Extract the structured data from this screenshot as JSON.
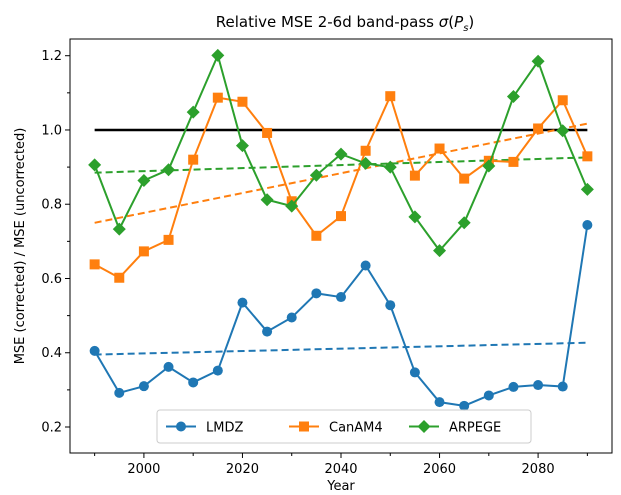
{
  "chart_data": {
    "type": "line",
    "title": "Relative MSE 2-6d band-pass σ(P_s)",
    "title_prefix": "Relative MSE 2-6d band-pass ",
    "title_sigma": "σ",
    "title_P": "P",
    "title_sub": "s",
    "xlabel": "Year",
    "ylabel": "MSE (corrected) / MSE (uncorrected)",
    "xlim": [
      1985,
      2095
    ],
    "ylim": [
      0.13,
      1.245
    ],
    "xticks": [
      2000,
      2020,
      2040,
      2060,
      2080
    ],
    "yticks": [
      0.2,
      0.4,
      0.6,
      0.8,
      1.0,
      1.2
    ],
    "xtick_labels": [
      "2000",
      "2020",
      "2040",
      "2060",
      "2080"
    ],
    "ytick_labels": [
      "0.2",
      "0.4",
      "0.6",
      "0.8",
      "1.0",
      "1.2"
    ],
    "grid": false,
    "legend_position": "bottom-center",
    "x": [
      1990,
      1995,
      2000,
      2005,
      2010,
      2015,
      2020,
      2025,
      2030,
      2035,
      2040,
      2045,
      2050,
      2055,
      2060,
      2065,
      2070,
      2075,
      2080,
      2085,
      2090
    ],
    "reference_line": {
      "y": 1.0,
      "x_start": 1990,
      "x_end": 2090,
      "color": "#000000"
    },
    "series": [
      {
        "name": "LMDZ",
        "color": "#1f77b4",
        "marker": "circle",
        "values": [
          0.405,
          0.292,
          0.31,
          0.362,
          0.32,
          0.352,
          0.535,
          0.457,
          0.495,
          0.56,
          0.55,
          0.635,
          0.528,
          0.347,
          0.267,
          0.257,
          0.285,
          0.308,
          0.313,
          0.309,
          0.744
        ],
        "trend": [
          0.395,
          0.427
        ]
      },
      {
        "name": "CanAM4",
        "color": "#ff7f0e",
        "marker": "square",
        "values": [
          0.638,
          0.602,
          0.673,
          0.704,
          0.92,
          1.087,
          1.076,
          0.992,
          0.808,
          0.715,
          0.768,
          0.944,
          1.091,
          0.877,
          0.95,
          0.869,
          0.917,
          0.914,
          1.004,
          1.08,
          0.929
        ],
        "trend": [
          0.75,
          1.017
        ]
      },
      {
        "name": "ARPEGE",
        "color": "#2ca02c",
        "marker": "diamond",
        "values": [
          0.906,
          0.733,
          0.864,
          0.893,
          1.048,
          1.201,
          0.958,
          0.812,
          0.795,
          0.878,
          0.935,
          0.91,
          0.9,
          0.766,
          0.675,
          0.75,
          0.903,
          1.09,
          1.185,
          0.998,
          0.84
        ],
        "trend": [
          0.885,
          0.926
        ]
      }
    ]
  }
}
